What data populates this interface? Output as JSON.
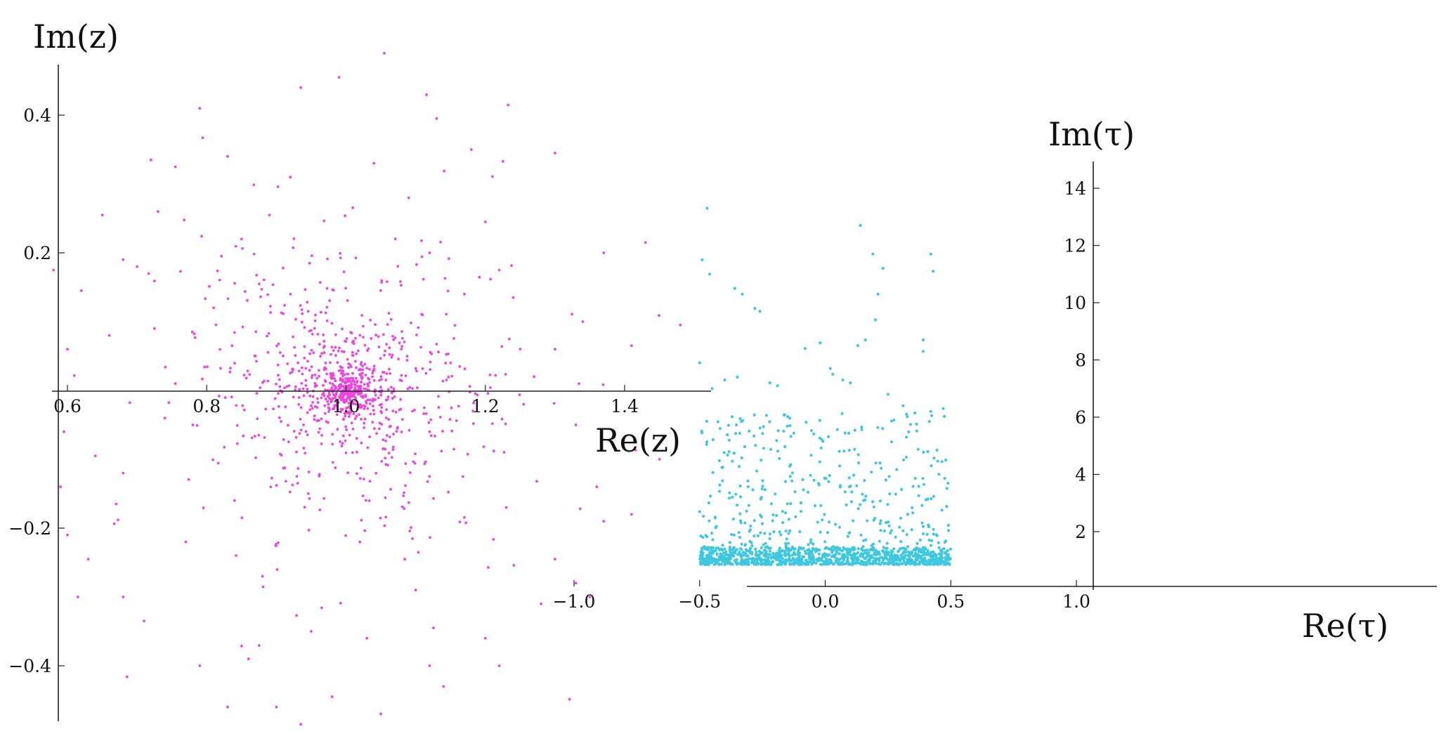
{
  "chart_data": [
    {
      "type": "scatter",
      "title": "",
      "xlabel": "Re(z)",
      "ylabel": "Im(z)",
      "xlim": [
        0.56,
        1.5
      ],
      "ylim": [
        -0.54,
        0.52
      ],
      "xticks": [
        "0.6",
        "0.8",
        "1.0",
        "1.2",
        "1.4"
      ],
      "yticks": [
        "0.4",
        "0.2",
        "−0.2",
        "−0.4"
      ],
      "tick_values_x": [
        0.6,
        0.8,
        1.0,
        1.2,
        1.4
      ],
      "tick_values_y": [
        0.4,
        0.2,
        -0.2,
        -0.4
      ],
      "grid": false,
      "point_color": "#ee44e0",
      "series": [
        {
          "points": [
            [
              1.055,
              0.49
            ],
            [
              0.99,
              0.455
            ],
            [
              0.935,
              0.44
            ],
            [
              0.79,
              0.41
            ],
            [
              1.13,
              0.395
            ],
            [
              0.72,
              0.335
            ],
            [
              0.755,
              0.325
            ],
            [
              0.83,
              0.34
            ],
            [
              1.18,
              0.35
            ],
            [
              1.3,
              0.345
            ],
            [
              0.65,
              0.255
            ],
            [
              0.73,
              0.26
            ],
            [
              0.89,
              0.255
            ],
            [
              1.09,
              0.28
            ],
            [
              1.2,
              0.245
            ],
            [
              0.58,
              0.175
            ],
            [
              0.62,
              0.145
            ],
            [
              0.68,
              0.19
            ],
            [
              0.7,
              0.18
            ],
            [
              1.22,
              0.175
            ],
            [
              1.37,
              0.2
            ],
            [
              1.43,
              0.215
            ],
            [
              1.48,
              0.095
            ],
            [
              1.24,
              0.135
            ],
            [
              1.34,
              0.1
            ],
            [
              0.6,
              0.06
            ],
            [
              0.66,
              0.08
            ],
            [
              0.725,
              0.09
            ],
            [
              1.3,
              0.06
            ],
            [
              1.41,
              0.065
            ],
            [
              0.595,
              -0.06
            ],
            [
              0.64,
              -0.095
            ],
            [
              0.68,
              -0.12
            ],
            [
              1.33,
              -0.05
            ],
            [
              1.36,
              -0.14
            ],
            [
              1.45,
              -0.1
            ],
            [
              0.6,
              -0.21
            ],
            [
              0.63,
              -0.245
            ],
            [
              0.68,
              -0.3
            ],
            [
              1.3,
              -0.245
            ],
            [
              1.33,
              -0.28
            ],
            [
              1.35,
              -0.3
            ],
            [
              0.71,
              -0.335
            ],
            [
              0.79,
              -0.4
            ],
            [
              0.86,
              -0.39
            ],
            [
              1.12,
              -0.4
            ],
            [
              1.22,
              -0.4
            ],
            [
              1.2,
              -0.36
            ],
            [
              0.83,
              -0.46
            ],
            [
              0.9,
              -0.46
            ],
            [
              0.935,
              -0.485
            ],
            [
              1.05,
              -0.47
            ],
            [
              0.98,
              -0.445
            ],
            [
              1.14,
              -0.43
            ],
            [
              0.67,
              -0.165
            ],
            [
              0.59,
              -0.14
            ],
            [
              1.37,
              -0.19
            ],
            [
              1.41,
              -0.18
            ],
            [
              0.615,
              -0.3
            ],
            [
              1.28,
              -0.31
            ],
            [
              0.755,
              0.01
            ],
            [
              0.78,
              -0.05
            ],
            [
              1.255,
              -0.02
            ],
            [
              1.27,
              0.02
            ],
            [
              0.81,
              0.12
            ],
            [
              1.17,
              0.14
            ],
            [
              0.85,
              0.22
            ],
            [
              1.12,
              0.2
            ],
            [
              0.88,
              -0.27
            ],
            [
              1.1,
              -0.29
            ],
            [
              0.92,
              0.31
            ],
            [
              1.04,
              0.33
            ],
            [
              0.95,
              -0.35
            ],
            [
              1.03,
              -0.36
            ],
            [
              0.87,
              0.05
            ],
            [
              1.12,
              -0.06
            ],
            [
              0.84,
              -0.16
            ],
            [
              1.15,
              0.04
            ],
            [
              0.77,
              -0.22
            ],
            [
              1.23,
              -0.17
            ]
          ]
        }
      ],
      "cluster": {
        "center": [
          1.0,
          0.0
        ],
        "radius": 0.035,
        "count": 90
      },
      "cloud": {
        "center": [
          1.0,
          0.0
        ],
        "spread": 0.16,
        "count": 900
      }
    },
    {
      "type": "scatter",
      "title": "",
      "xlabel": "Re(τ)",
      "ylabel": "Im(τ)",
      "xlim": [
        -1.05,
        1.05
      ],
      "ylim": [
        -0.3,
        15.0
      ],
      "xticks": [
        "−1.0",
        "−0.5",
        "0.0",
        "0.5",
        "1.0"
      ],
      "yticks": [
        "2",
        "4",
        "6",
        "8",
        "10",
        "12",
        "14"
      ],
      "tick_values_x": [
        -1.0,
        -0.5,
        0.0,
        0.5,
        1.0
      ],
      "tick_values_y": [
        2,
        4,
        6,
        8,
        10,
        12,
        14
      ],
      "grid": false,
      "point_color": "#3ec8e0",
      "series": [
        {
          "points": [
            [
              -0.47,
              13.3
            ],
            [
              -0.49,
              11.5
            ],
            [
              -0.46,
              11.0
            ],
            [
              -0.36,
              10.5
            ],
            [
              -0.33,
              10.3
            ],
            [
              -0.28,
              9.8
            ],
            [
              -0.26,
              9.7
            ],
            [
              -0.5,
              7.9
            ],
            [
              -0.45,
              7.0
            ],
            [
              -0.4,
              7.3
            ],
            [
              0.14,
              12.7
            ],
            [
              0.19,
              11.7
            ],
            [
              0.23,
              11.2
            ],
            [
              0.21,
              10.3
            ],
            [
              0.2,
              9.4
            ],
            [
              0.42,
              11.7
            ],
            [
              0.43,
              11.1
            ],
            [
              0.47,
              6.3
            ],
            [
              0.48,
              4.5
            ],
            [
              0.03,
              7.5
            ],
            [
              0.02,
              7.7
            ],
            [
              0.07,
              7.3
            ],
            [
              0.1,
              7.2
            ],
            [
              0.13,
              8.5
            ],
            [
              0.16,
              8.7
            ],
            [
              0.39,
              8.3
            ],
            [
              0.39,
              8.7
            ],
            [
              -0.08,
              8.4
            ],
            [
              -0.02,
              8.6
            ],
            [
              0.25,
              6.8
            ],
            [
              -0.35,
              7.4
            ],
            [
              -0.19,
              7.1
            ],
            [
              -0.22,
              7.2
            ],
            [
              0.31,
              6.4
            ],
            [
              0.42,
              6.2
            ]
          ]
        }
      ],
      "band": {
        "xmin": -0.5,
        "xmax": 0.5,
        "ymin": 0.85,
        "ymax": 1.45,
        "count": 900
      },
      "scatter_band": {
        "xmin": -0.5,
        "xmax": 0.5,
        "ymin": 1.0,
        "ymax": 6.2,
        "count": 520
      }
    }
  ]
}
